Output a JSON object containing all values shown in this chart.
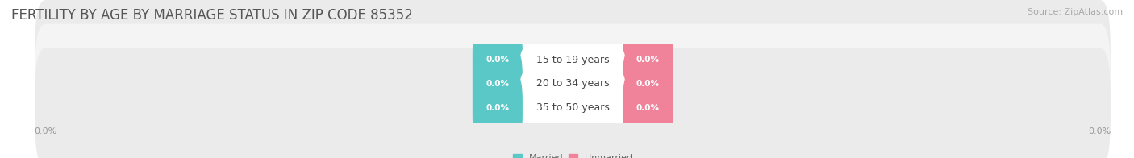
{
  "title": "FERTILITY BY AGE BY MARRIAGE STATUS IN ZIP CODE 85352",
  "source": "Source: ZipAtlas.com",
  "categories": [
    "15 to 19 years",
    "20 to 34 years",
    "35 to 50 years"
  ],
  "married_values": [
    0.0,
    0.0,
    0.0
  ],
  "unmarried_values": [
    0.0,
    0.0,
    0.0
  ],
  "married_color": "#5bc8c8",
  "unmarried_color": "#f0829a",
  "bar_bg_color": "#e8e8e8",
  "bar_bg_light": "#f0f0f0",
  "title_fontsize": 12,
  "source_fontsize": 8,
  "value_fontsize": 7.5,
  "category_fontsize": 9,
  "tick_fontsize": 8,
  "background_color": "#ffffff",
  "legend_married": "Married",
  "legend_unmarried": "Unmarried",
  "xlim_left": -100,
  "xlim_right": 100,
  "tick_label_left": "0.0%",
  "tick_label_right": "0.0%"
}
